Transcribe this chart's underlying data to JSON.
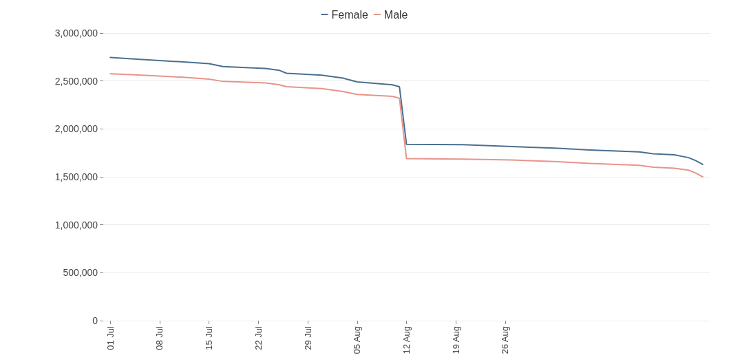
{
  "chart_data": {
    "type": "line",
    "legend": "top",
    "grid": "y",
    "marker": "none",
    "line_style": "solid",
    "ylim": [
      0,
      3000000
    ],
    "yticks": [
      {
        "value": 0,
        "label": "0"
      },
      {
        "value": 500000,
        "label": "500,000"
      },
      {
        "value": 1000000,
        "label": "1,000,000"
      },
      {
        "value": 1500000,
        "label": "1,500,000"
      },
      {
        "value": 2000000,
        "label": "2,000,000"
      },
      {
        "value": 2500000,
        "label": "2,500,000"
      },
      {
        "value": 3000000,
        "label": "3,000,000"
      }
    ],
    "xlim": [
      "--06-30",
      "--09-24"
    ],
    "xticks": [
      {
        "value": "--07-01",
        "label": "01 Jul"
      },
      {
        "value": "--07-08",
        "label": "08 Jul"
      },
      {
        "value": "--07-15",
        "label": "15 Jul"
      },
      {
        "value": "--07-22",
        "label": "22 Jul"
      },
      {
        "value": "--07-29",
        "label": "29 Jul"
      },
      {
        "value": "--08-05",
        "label": "05 Aug"
      },
      {
        "value": "--08-12",
        "label": "12 Aug"
      },
      {
        "value": "--08-19",
        "label": "19 Aug"
      },
      {
        "value": "--08-26",
        "label": "26 Aug"
      }
    ],
    "x": [
      "--07-01",
      "--07-04",
      "--07-11",
      "--07-15",
      "--07-17",
      "--07-23",
      "--07-25",
      "--07-26",
      "--07-31",
      "--08-03",
      "--08-05",
      "--08-10",
      "--08-11",
      "--08-12",
      "--08-20",
      "--08-27",
      "--09-02",
      "--09-07",
      "--09-14",
      "--09-16",
      "--09-19",
      "--09-21",
      "--09-22",
      "--09-23"
    ],
    "series": [
      {
        "name": "Female",
        "color": "#4a6f8f",
        "values": [
          2745000,
          2730000,
          2700000,
          2680000,
          2650000,
          2630000,
          2610000,
          2580000,
          2560000,
          2530000,
          2490000,
          2460000,
          2440000,
          1840000,
          1835000,
          1815000,
          1800000,
          1780000,
          1760000,
          1740000,
          1730000,
          1700000,
          1670000,
          1630000
        ]
      },
      {
        "name": "Male",
        "color": "#e8948a",
        "values": [
          2575000,
          2565000,
          2540000,
          2520000,
          2495000,
          2480000,
          2460000,
          2440000,
          2420000,
          2390000,
          2360000,
          2340000,
          2320000,
          1690000,
          1685000,
          1675000,
          1660000,
          1640000,
          1620000,
          1600000,
          1590000,
          1570000,
          1540000,
          1500000
        ]
      }
    ]
  }
}
